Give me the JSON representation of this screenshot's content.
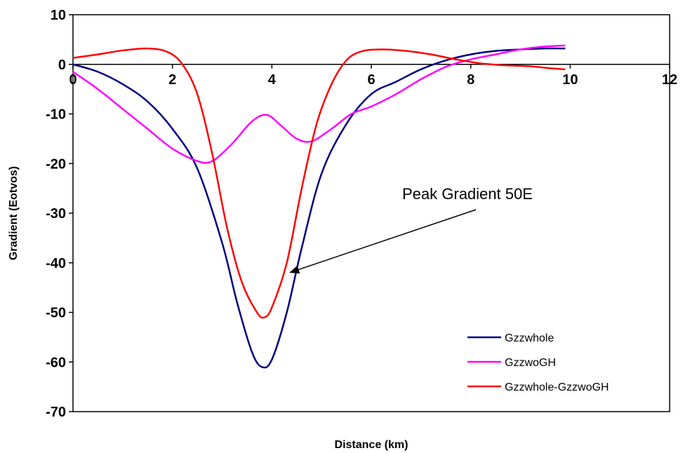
{
  "chart_data": {
    "type": "line",
    "xlabel": "Distance (km)",
    "ylabel": "Gradient (Eotvos)",
    "xlim": [
      0,
      12
    ],
    "ylim": [
      -70,
      10
    ],
    "xticks": [
      0,
      2,
      4,
      6,
      8,
      10,
      12
    ],
    "yticks": [
      10,
      0,
      -10,
      -20,
      -30,
      -40,
      -50,
      -60,
      -70
    ],
    "x_tick_labels": [
      "0",
      "2",
      "4",
      "6",
      "8",
      "10",
      "12"
    ],
    "y_tick_labels": [
      "10",
      "0",
      "-10",
      "-20",
      "-30",
      "-40",
      "-50",
      "-60",
      "-70"
    ],
    "grid": false,
    "legend_position": "bottom-right",
    "series": [
      {
        "name": "Gzzwhole",
        "color": "#000080",
        "x": [
          0,
          0.5,
          1,
          1.5,
          2,
          2.5,
          3,
          3.3,
          3.6,
          3.8,
          4.0,
          4.3,
          4.6,
          5.0,
          5.5,
          6.0,
          6.5,
          7.0,
          7.5,
          8.0,
          8.5,
          9.0,
          9.5,
          9.9
        ],
        "y": [
          0,
          -1.5,
          -4,
          -7.5,
          -13,
          -21,
          -36,
          -48,
          -58,
          -61,
          -59.5,
          -50,
          -37,
          -22,
          -12,
          -6,
          -3.5,
          -1,
          0.8,
          2,
          2.7,
          3,
          3.2,
          3.2
        ]
      },
      {
        "name": "GzzwoGH",
        "color": "#FF00FF",
        "x": [
          0,
          0.5,
          1,
          1.5,
          2,
          2.5,
          2.8,
          3.2,
          3.6,
          3.9,
          4.2,
          4.5,
          4.8,
          5.2,
          5.6,
          6.0,
          6.5,
          7.0,
          7.5,
          8.0,
          8.5,
          9.0,
          9.5,
          9.9
        ],
        "y": [
          -1.5,
          -5,
          -9,
          -13,
          -17,
          -19.5,
          -19.5,
          -16,
          -11.5,
          -10.2,
          -12.5,
          -15,
          -15.5,
          -13,
          -10,
          -8.5,
          -6,
          -3,
          -0.5,
          1,
          2,
          3,
          3.6,
          3.8
        ]
      },
      {
        "name": "Gzzwhole-GzzwoGH",
        "color": "#FF0000",
        "x": [
          0,
          0.5,
          1,
          1.5,
          1.9,
          2.2,
          2.5,
          2.8,
          3.1,
          3.4,
          3.7,
          3.85,
          4.0,
          4.3,
          4.6,
          4.9,
          5.2,
          5.5,
          5.8,
          6.2,
          6.7,
          7.2,
          7.7,
          8.2,
          8.7,
          9.2,
          9.6,
          9.9
        ],
        "y": [
          1.3,
          2,
          2.8,
          3.2,
          2.5,
          0,
          -6,
          -18,
          -33,
          -44,
          -50,
          -51,
          -49,
          -40,
          -25,
          -12,
          -4,
          0.8,
          2.6,
          3,
          2.7,
          2,
          1,
          0.2,
          -0.2,
          -0.4,
          -0.8,
          -1
        ]
      }
    ],
    "annotations": [
      {
        "text": "Peak Gradient 50E",
        "arrow_to": {
          "x": 4.35,
          "y": -42
        }
      }
    ]
  }
}
